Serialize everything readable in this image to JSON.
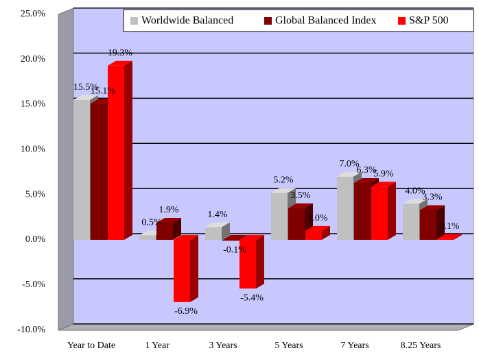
{
  "chart_data": {
    "type": "bar3d",
    "categories": [
      "Year to Date",
      "1 Year",
      "3 Years",
      "5 Years",
      "7 Years",
      "8.25 Years"
    ],
    "series": [
      {
        "name": "Worldwide Balanced",
        "color": "#c0c0c0",
        "values": [
          15.5,
          0.5,
          1.4,
          5.2,
          7.0,
          4.0
        ],
        "value_labels": [
          "15.5%",
          "0.5%",
          "1.4%",
          "5.2%",
          "7.0%",
          "4.0%"
        ]
      },
      {
        "name": "Global Balanced Index",
        "color": "#800000",
        "values": [
          15.1,
          1.9,
          -0.1,
          3.5,
          6.3,
          3.3
        ],
        "value_labels": [
          "15.1%",
          "1.9%",
          "-0.1%",
          "3.5%",
          "6.3%",
          "3.3%"
        ]
      },
      {
        "name": "S&P 500",
        "color": "#ff0000",
        "values": [
          19.3,
          -6.9,
          -5.4,
          1.0,
          5.9,
          0.1
        ],
        "value_labels": [
          "19.3%",
          "-6.9%",
          "-5.4%",
          "1.0%",
          "5.9%",
          "0.1%"
        ]
      }
    ],
    "ylim": [
      -10,
      25
    ],
    "yticks": [
      {
        "value": -10,
        "label": "-10.0%"
      },
      {
        "value": -5,
        "label": "-5.0%"
      },
      {
        "value": 0,
        "label": "0.0%"
      },
      {
        "value": 5,
        "label": "5.0%"
      },
      {
        "value": 10,
        "label": "10.0%"
      },
      {
        "value": 15,
        "label": "15.0%"
      },
      {
        "value": 20,
        "label": "20.0%"
      },
      {
        "value": 25,
        "label": "25.0%"
      }
    ],
    "grid": true,
    "legend": "top"
  }
}
